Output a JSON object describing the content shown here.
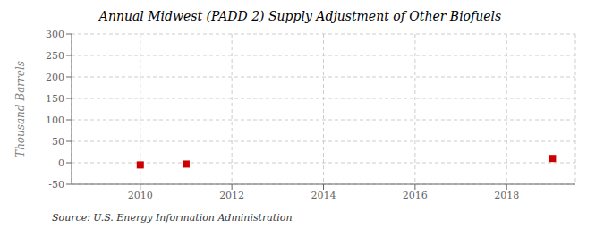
{
  "chart_data": {
    "type": "scatter",
    "title": "Annual Midwest (PADD 2) Supply Adjustment of Other Biofuels",
    "ylabel": "Thousand Barrels",
    "annotations": [
      "Source: U.S. Energy Information Administration"
    ],
    "x": [
      2010,
      2011,
      2019
    ],
    "values": [
      -5,
      -3,
      10
    ],
    "color": "#cc0000",
    "marker": "square",
    "xlim": [
      2008.5,
      2019.5
    ],
    "ylim": [
      -50,
      300
    ],
    "xticks": [
      2010,
      2012,
      2014,
      2016,
      2018
    ],
    "yticks": [
      -50,
      0,
      50,
      100,
      150,
      200,
      250,
      300
    ],
    "grid": true
  }
}
